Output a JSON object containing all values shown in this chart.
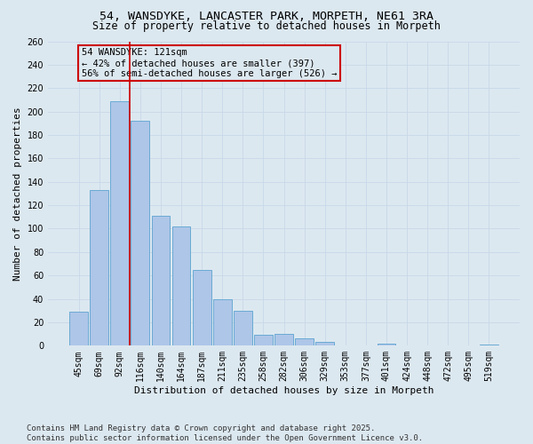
{
  "title_line1": "54, WANSDYKE, LANCASTER PARK, MORPETH, NE61 3RA",
  "title_line2": "Size of property relative to detached houses in Morpeth",
  "xlabel": "Distribution of detached houses by size in Morpeth",
  "ylabel": "Number of detached properties",
  "categories": [
    "45sqm",
    "69sqm",
    "92sqm",
    "116sqm",
    "140sqm",
    "164sqm",
    "187sqm",
    "211sqm",
    "235sqm",
    "258sqm",
    "282sqm",
    "306sqm",
    "329sqm",
    "353sqm",
    "377sqm",
    "401sqm",
    "424sqm",
    "448sqm",
    "472sqm",
    "495sqm",
    "519sqm"
  ],
  "values": [
    29,
    133,
    209,
    192,
    111,
    102,
    65,
    40,
    30,
    9,
    10,
    6,
    3,
    0,
    0,
    2,
    0,
    0,
    0,
    0,
    1
  ],
  "bar_color": "#aec6e8",
  "bar_edge_color": "#6aaad4",
  "grid_color": "#c8d8e8",
  "background_color": "#dce8f0",
  "vline_color": "#cc0000",
  "vline_x": 2.5,
  "annotation_text": "54 WANSDYKE: 121sqm\n← 42% of detached houses are smaller (397)\n56% of semi-detached houses are larger (526) →",
  "annotation_box_color": "#cc0000",
  "ylim": [
    0,
    260
  ],
  "yticks": [
    0,
    20,
    40,
    60,
    80,
    100,
    120,
    140,
    160,
    180,
    200,
    220,
    240,
    260
  ],
  "footnote": "Contains HM Land Registry data © Crown copyright and database right 2025.\nContains public sector information licensed under the Open Government Licence v3.0.",
  "title_fontsize": 9.5,
  "subtitle_fontsize": 8.5,
  "axis_label_fontsize": 8,
  "tick_fontsize": 7,
  "annotation_fontsize": 7.5,
  "footnote_fontsize": 6.5
}
